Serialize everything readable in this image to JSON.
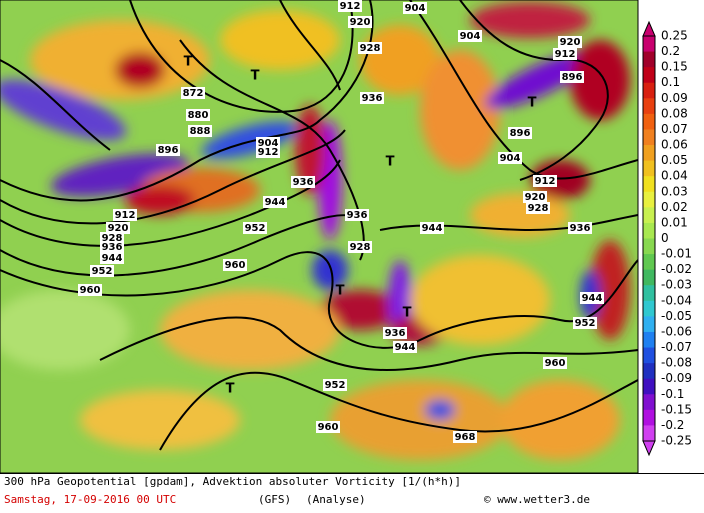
{
  "map": {
    "contour_labels": [
      "912",
      "920",
      "904",
      "928",
      "904",
      "920",
      "912",
      "896",
      "872",
      "880",
      "888",
      "896",
      "904",
      "912",
      "936",
      "896",
      "904",
      "912",
      "920",
      "928",
      "936",
      "944",
      "952",
      "936",
      "928",
      "944",
      "936",
      "960",
      "912",
      "920",
      "928",
      "936",
      "944",
      "952",
      "960",
      "944",
      "952",
      "936",
      "944",
      "960",
      "952",
      "960",
      "968"
    ],
    "markers": [
      "T",
      "T",
      "T",
      "T",
      "T",
      "T",
      "T"
    ],
    "colorbar": {
      "labels": [
        "0.25",
        "0.2",
        "0.15",
        "0.1",
        "0.09",
        "0.08",
        "0.07",
        "0.06",
        "0.05",
        "0.04",
        "0.03",
        "0.02",
        "0.01",
        "0",
        "-0.01",
        "-0.02",
        "-0.03",
        "-0.04",
        "-0.05",
        "-0.06",
        "-0.07",
        "-0.08",
        "-0.09",
        "-0.1",
        "-0.15",
        "-0.2",
        "-0.25"
      ],
      "colors": [
        "#c8006e",
        "#a0002a",
        "#c00018",
        "#d82010",
        "#e84010",
        "#f06010",
        "#f08020",
        "#f0a020",
        "#f0c020",
        "#f0e020",
        "#e8f040",
        "#c8f050",
        "#a8e850",
        "#88d850",
        "#60c850",
        "#40b860",
        "#30c0a0",
        "#30c8d0",
        "#30b0f0",
        "#2080f0",
        "#2050e0",
        "#2030c0",
        "#4010c0",
        "#8010d0",
        "#b010e0",
        "#d040f0"
      ]
    },
    "footer": {
      "title": "300 hPa Geopotential [gpdam], Advektion absoluter Vorticity [1/(h*h)]",
      "date": "Samstag, 17-09-2016  00 UTC",
      "model": "(GFS)",
      "run": "(Analyse)",
      "credit": "© www.wetter3.de"
    }
  }
}
